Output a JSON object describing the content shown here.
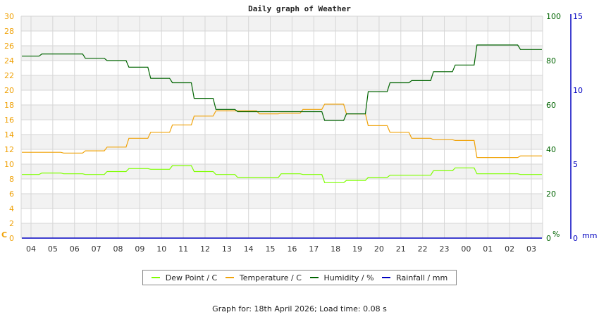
{
  "title": "Daily graph of Weather",
  "footer": "Graph for: 18th April 2026; Load time: 0.08 s",
  "axes": {
    "left": {
      "unit": "C",
      "ticks": [
        "0",
        "2",
        "4",
        "6",
        "8",
        "10",
        "12",
        "14",
        "16",
        "18",
        "20",
        "22",
        "24",
        "26",
        "28",
        "30"
      ],
      "color": "#f0a30a"
    },
    "right_humidity": {
      "unit": "%",
      "ticks": [
        "0",
        "20",
        "40",
        "60",
        "80",
        "100"
      ],
      "color": "#006400"
    },
    "right_rainfall": {
      "unit": "mm",
      "ticks": [
        "0",
        "5",
        "10",
        "15"
      ],
      "color": "#0000c0"
    },
    "x_ticks": [
      "04",
      "05",
      "06",
      "07",
      "08",
      "09",
      "10",
      "11",
      "12",
      "13",
      "14",
      "15",
      "16",
      "17",
      "18",
      "19",
      "20",
      "21",
      "22",
      "23",
      "00",
      "01",
      "02",
      "03"
    ]
  },
  "legend": [
    {
      "label": "Dew Point / C",
      "color": "#7fff00"
    },
    {
      "label": "Temperature / C",
      "color": "#f0a30a"
    },
    {
      "label": "Humidity / %",
      "color": "#006400"
    },
    {
      "label": "Rainfall / mm",
      "color": "#0000c0"
    }
  ],
  "chart_data": {
    "type": "line",
    "title": "Daily graph of Weather",
    "xlabel": "",
    "ylabel": "C",
    "ylim": [
      0,
      30
    ],
    "y2label": "%",
    "y2lim": [
      0,
      100
    ],
    "y3label": "mm",
    "y3lim": [
      0,
      15
    ],
    "grid": true,
    "legend_position": "bottom",
    "x": [
      "04",
      "05",
      "06",
      "07",
      "08",
      "09",
      "10",
      "11",
      "12",
      "13",
      "14",
      "15",
      "16",
      "17",
      "18",
      "19",
      "20",
      "21",
      "22",
      "23",
      "00",
      "01",
      "02",
      "03"
    ],
    "series": [
      {
        "name": "Dew Point / C",
        "axis": "left",
        "color": "#7fff00",
        "values": [
          8.6,
          8.8,
          8.7,
          8.6,
          9.0,
          9.4,
          9.3,
          9.8,
          9.0,
          8.6,
          8.2,
          8.2,
          8.7,
          8.6,
          7.5,
          7.8,
          8.2,
          8.5,
          8.5,
          9.1,
          9.5,
          8.7,
          8.7,
          8.6
        ]
      },
      {
        "name": "Temperature / C",
        "axis": "left",
        "color": "#f0a30a",
        "values": [
          11.6,
          11.6,
          11.5,
          11.8,
          12.3,
          13.5,
          14.3,
          15.3,
          16.5,
          17.2,
          17.2,
          16.8,
          16.9,
          17.4,
          18.1,
          16.8,
          15.2,
          14.3,
          13.5,
          13.3,
          13.2,
          10.9,
          10.9,
          11.1
        ]
      },
      {
        "name": "Humidity / %",
        "axis": "right",
        "color": "#006400",
        "values": [
          82,
          83,
          83,
          81,
          80,
          77,
          72,
          70,
          63,
          58,
          57,
          57,
          57,
          57,
          53,
          56,
          66,
          70,
          71,
          75,
          78,
          87,
          87,
          85
        ]
      },
      {
        "name": "Rainfall / mm",
        "axis": "right2",
        "color": "#0000c0",
        "values": [
          0,
          0,
          0,
          0,
          0,
          0,
          0,
          0,
          0,
          0,
          0,
          0,
          0,
          0,
          0,
          0,
          0,
          0,
          0,
          0,
          0,
          0,
          0,
          0
        ]
      }
    ]
  }
}
